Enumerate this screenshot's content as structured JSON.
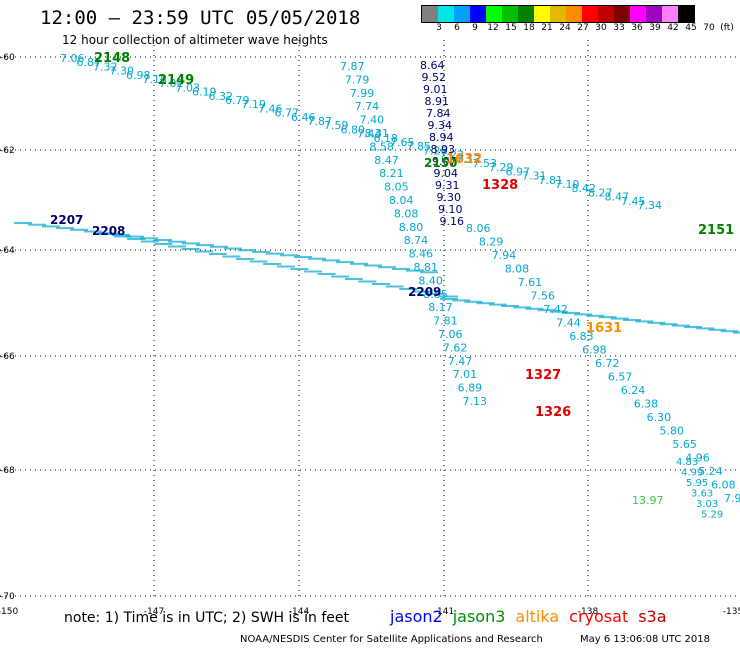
{
  "title": "12:00 – 23:59 UTC 05/05/2018",
  "subtitle": "12 hour collection of altimeter wave heights",
  "colorbar": {
    "colors": [
      "#808080",
      "#00e5e5",
      "#00a0ff",
      "#0000ff",
      "#00ff00",
      "#00c000",
      "#008000",
      "#ffff00",
      "#e5b800",
      "#ff8c00",
      "#ff0000",
      "#c00000",
      "#800000",
      "#ff00ff",
      "#a000c0",
      "#ff80ff",
      "#000000"
    ],
    "ticks": [
      "3",
      "6",
      "9",
      "12",
      "15",
      "18",
      "21",
      "24",
      "27",
      "30",
      "33",
      "36",
      "39",
      "42",
      "45",
      "70",
      "(ft)"
    ]
  },
  "lat_labels": [
    "-60",
    "-62",
    "-64",
    "-66",
    "-68",
    "-70"
  ],
  "lon_labels": [
    "-150",
    "-147",
    "-144",
    "-141",
    "-138",
    "-135"
  ],
  "note": "note: 1) Time is in UTC; 2) SWH is in feet",
  "legend": [
    {
      "name": "jason2",
      "color": "#0000ff"
    },
    {
      "name": "jason3",
      "color": "#009000"
    },
    {
      "name": "altika",
      "color": "#ff8c00"
    },
    {
      "name": "cryosat",
      "color": "#ff0000"
    },
    {
      "name": "s3a",
      "color": "#c00000"
    }
  ],
  "credit": "NOAA/NESDIS Center for Satellite Applications and Research",
  "timestamp": "May  6 13:06:08 UTC 2018",
  "colors": {
    "s3a_track": "#00b0d8",
    "jason_track": "#00007a",
    "jason_light": "#40c040",
    "pass_green": "#008000",
    "pass_red": "#e00000",
    "pass_orange": "#ff8c00",
    "pass_navy": "#000070"
  },
  "tracks": [
    {
      "name": "track-nw-se",
      "color": "#00a8d0",
      "values": [
        "7.06",
        "6.87",
        "7.32",
        "7.30",
        "6.98",
        "7.15",
        "7.02",
        "7.03",
        "6.19",
        "6.32",
        "6.79",
        "7.19",
        "7.46",
        "6.77",
        "6.46",
        "7.87",
        "7.59",
        "6.80",
        "7.44",
        "6.18",
        "7.65",
        "7.85",
        "7.26",
        "7.23",
        "7.13",
        "7.53",
        "7.29",
        "6.97",
        "7.31",
        "7.81",
        "7.10",
        "8.42",
        "8.27",
        "8.47",
        "7.45",
        "7.34"
      ]
    },
    {
      "name": "track-n-s-left",
      "color": "#00a8d0",
      "values": [
        "7.87",
        "7.79",
        "7.99",
        "7.74",
        "7.40",
        "8.31",
        "8.58",
        "8.47",
        "8.21",
        "8.05",
        "8.04",
        "8.08",
        "8.80",
        "8.74",
        "8.46",
        "8.81",
        "8.40",
        "8.85",
        "8.17",
        "7.81",
        "7.06",
        "7.62",
        "7.47",
        "7.01",
        "6.89",
        "7.13"
      ]
    },
    {
      "name": "track-n-s-jason",
      "color": "#000070",
      "values": [
        "8.64",
        "9.52",
        "9.01",
        "8.91",
        "7.84",
        "9.34",
        "8.94",
        "8.93",
        "9.07",
        "9.04",
        "9.31",
        "9.30",
        "9.10",
        "9.16"
      ]
    },
    {
      "name": "track-center",
      "color": "#00a8d0",
      "values": [
        "8.06",
        "8.29",
        "7.94",
        "8.08",
        "7.61",
        "7.56",
        "7.42",
        "7.44",
        "6.83",
        "6.98",
        "6.72",
        "6.57",
        "6.24",
        "6.38",
        "6.30",
        "5.80",
        "5.65",
        "4.96",
        "5.24",
        "6.08",
        "7.9"
      ]
    },
    {
      "name": "track-lower",
      "color": "#00a8d0",
      "values": [
        "4.83",
        "4.99",
        "5.95",
        "3.63",
        "3.03",
        "5.29"
      ]
    },
    {
      "name": "track-green",
      "color": "#40c040",
      "values": [
        "13.97"
      ]
    }
  ],
  "pass_labels": [
    {
      "text": "2148",
      "color": "#008000"
    },
    {
      "text": "2149",
      "color": "#008000"
    },
    {
      "text": "2207",
      "color": "#000070"
    },
    {
      "text": "2208",
      "color": "#000070"
    },
    {
      "text": "2209",
      "color": "#000070"
    },
    {
      "text": "2150",
      "color": "#008000"
    },
    {
      "text": "1632",
      "color": "#ff8c00"
    },
    {
      "text": "1328",
      "color": "#e00000"
    },
    {
      "text": "1631",
      "color": "#ff8c00"
    },
    {
      "text": "1327",
      "color": "#e00000"
    },
    {
      "text": "1326",
      "color": "#e00000"
    },
    {
      "text": "2151",
      "color": "#008000"
    }
  ]
}
